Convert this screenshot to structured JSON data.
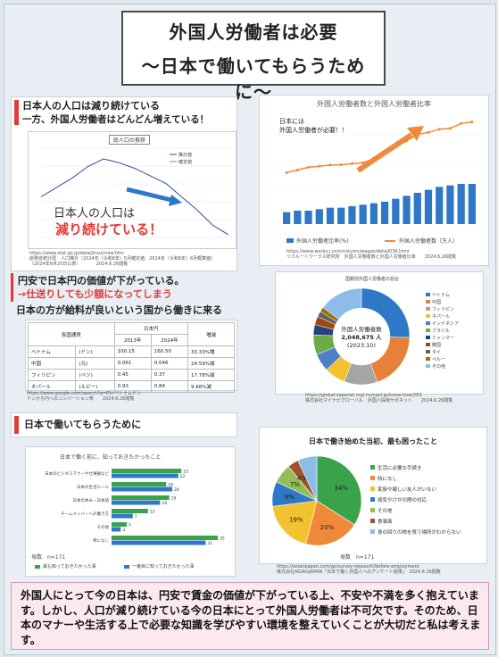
{
  "title": {
    "line1": "外国人労働者は必要",
    "line2": "〜日本で働いてもらうために〜"
  },
  "section1": {
    "heading1": "日本人の人口は減り続けている",
    "heading2": "一方、外国人労働者はどんどん増えている！",
    "chart_title": "総人口の推移",
    "legend_a": "推計値",
    "legend_b": "確定値",
    "overlay1": "日本人の人口は",
    "overlay2": "減り続けている！",
    "source1": "https://www.stat.go.jp/data/jinsui/new.htm",
    "source2": "総務省統計局　人口推計（2024年（令和6年）5月確定値、2024年（令和6年）6月概算値）",
    "source3": "（2024年6月20日公表）　　　　2024.6.26閲覧"
  },
  "section2": {
    "chart_title": "外国人労働者数と外国人労働者比率",
    "annotation1": "日本には",
    "annotation2": "外国人労働者が必要！！",
    "legend_bar": "外国人労働者比率(％)",
    "legend_line": "外国人労働者数（万人）",
    "source1": "https://www.works-i.com/column/wages/detail036.html",
    "source2": "リクルートワークス研究所　外国人労働者数と外国人労働者比率　　2024.6.26閲覧"
  },
  "chart_data": [
    {
      "type": "line",
      "title": "総人口の推移",
      "series": [
        {
          "name": "推計値",
          "values": [
            12600,
            12650,
            12700,
            12760,
            12800,
            12780,
            12750,
            12710,
            12670,
            12600,
            12530,
            12450,
            12400
          ]
        }
      ]
    },
    {
      "type": "bar",
      "title": "外国人労働者数と外国人労働者比率",
      "categories": [
        "1",
        "2",
        "3",
        "4",
        "5",
        "6",
        "7",
        "8",
        "9",
        "10",
        "11",
        "12",
        "13",
        "14",
        "15",
        "16",
        "17",
        "18"
      ],
      "series": [
        {
          "name": "外国人労働者比率(％)",
          "values": [
            0.8,
            0.9,
            0.9,
            1.0,
            1.1,
            1.1,
            1.2,
            1.3,
            1.4,
            1.5,
            1.7,
            1.9,
            2.1,
            2.3,
            2.5,
            2.6,
            2.7,
            2.7
          ]
        },
        {
          "name": "外国人労働者数（万人）",
          "values": [
            48.6,
            56.3,
            65.0,
            68.3,
            71.9,
            72.5,
            76.0,
            78.8,
            90.8,
            108.4,
            127.9,
            146.0,
            166.0,
            172.4,
            182.3,
            184.9,
            200.0,
            204.9
          ]
        }
      ]
    },
    {
      "type": "pie",
      "title": "国籍別外国人労働者の割合",
      "categories": [
        "ベトナム",
        "中国",
        "フィリピン",
        "ネパール",
        "インドネシア",
        "ブラジル",
        "ミャンマー",
        "韓国",
        "タイ",
        "ペルー",
        "その他"
      ],
      "values": [
        25.3,
        19.4,
        11.1,
        7.1,
        6.0,
        6.6,
        3.5,
        2.8,
        1.9,
        1.6,
        14.7
      ]
    },
    {
      "type": "bar",
      "title": "日本で働く前に、知っておきたかったこと",
      "categories": [
        "日本のビジネスマナーや仕事観など",
        "日本の生活ルール",
        "日本の休み・日本語",
        "チームメンバーへの働き方",
        "その他",
        "特になし"
      ],
      "series": [
        {
          "name": "最も知っておきたかった事",
          "values": [
            23,
            18,
            19,
            12,
            5,
            35
          ]
        },
        {
          "name": "一番目に知っておきたかった事",
          "values": [
            22,
            20,
            16,
            7,
            3,
            31
          ]
        }
      ]
    },
    {
      "type": "pie",
      "title": "日本で働き始めた当初、最も困ったこと",
      "categories": [
        "生活に必要な手続き",
        "特になし",
        "家族や親しい友人がいない",
        "病気やけがの際の対応",
        "その他",
        "食事面",
        "身の回りの物を買う場所がわからない"
      ],
      "values": [
        34,
        20,
        19,
        9,
        7,
        4,
        7
      ]
    }
  ],
  "section3": {
    "heading1": "円安で日本円の価値が下がっている。",
    "heading2": "→仕送りしても少額になってしまう",
    "heading3": "日本の方が給料が良いという国から働きに来る",
    "table": {
      "col_currency": "各国通貨",
      "col_jpy": "日本円",
      "col_2013": "2013年",
      "col_2024": "2024年",
      "col_change": "増減",
      "rows": [
        {
          "country": "ベトナム",
          "unit": "(ドン)",
          "v2013": "100.15",
          "v2024": "160.50",
          "change": "33.33%増"
        },
        {
          "country": "中国",
          "unit": "(元)",
          "v2013": "0.061",
          "v2024": "0.046",
          "change": "24.59%減"
        },
        {
          "country": "フィリピン",
          "unit": "(ペソ)",
          "v2013": "0.45",
          "v2024": "0.37",
          "change": "17.78%減"
        },
        {
          "country": "ネパール",
          "unit": "(ルピー)",
          "v2013": "0.93",
          "v2024": "0.84",
          "change": "9.68%減"
        }
      ]
    },
    "source1": "https://www.google.com/search?q=円+ベトナムドン",
    "source2": "ドンから円へのコンバーション表　　2024.6.26閲覧"
  },
  "section4": {
    "center1": "外国人労働者数",
    "center2": "2,048,675 人",
    "center3": "(2023.10)",
    "chart_title": "国籍別外国人労働者の割合",
    "source1": "https://global-saponet.mgl.mynavi.jp/know-how/263",
    "source2": "株式会社マイナビグローバル　外国人採用サポネット　　2024.6.26閲覧"
  },
  "section5": {
    "heading": "日本で働いてもらうために",
    "chart_title": "日本で働く前に、知っておきたかったこと",
    "parent": "母数　n=171",
    "legend_a": "最も知っておきたかった事",
    "legend_b": "一番目に知っておきたかった事",
    "value_labels": [
      "23",
      "22",
      "18",
      "20",
      "19",
      "16",
      "12",
      "7",
      "5",
      "3",
      "35",
      "31"
    ]
  },
  "section6": {
    "chart_title": "日本で働き始めた当初、最も困ったこと",
    "parent": "母数　n=171",
    "pct_labels": [
      "34%",
      "20%",
      "19%",
      "9%",
      "7%",
      "4%"
    ],
    "source1": "https://asiatojapan.com/gs/survey-research/before-employment",
    "source2": "株式会社ASIAtoJAPAN「日本で働く外国人へのアンケート結果」　2024.6.26閲覧"
  },
  "conclusion": {
    "text": "外国人にとって今の日本は、円安で賃金の価値が下がっている上、不安や不満を多く抱えています。しかし、人口が減り続けている今の日本にとって外国人労働者は不可欠です。そのため、日本のマナーや生活する上で必要な知識を学びやすい環境を整えていくことが大切だと私は考えます。"
  },
  "colors": {
    "accent_red": "#e53935",
    "chart_blue": "#2e78c7",
    "line_orange": "#f08a3a",
    "pie_green": "#3aa34a"
  }
}
